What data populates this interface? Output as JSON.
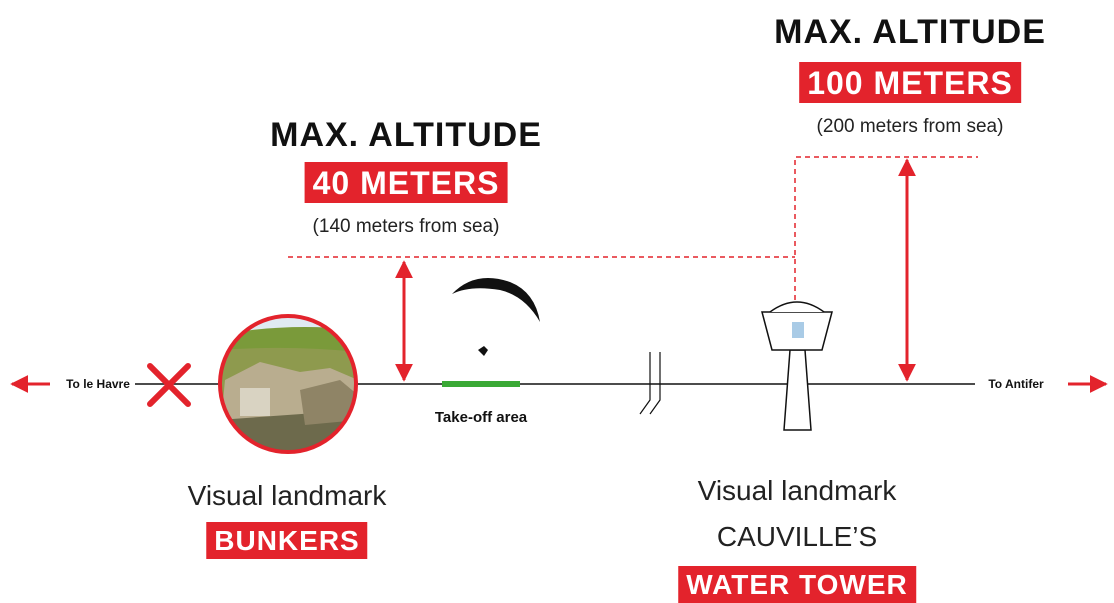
{
  "altitude_limits": [
    {
      "title": "MAX. ALTITUDE",
      "limit": "40 METERS",
      "note": "(140 meters from sea)"
    },
    {
      "title": "MAX. ALTITUDE",
      "limit": "100 METERS",
      "note": "(200 meters from sea)"
    }
  ],
  "directions": {
    "left": "To le Havre",
    "right": "To Antifer"
  },
  "takeoff": "Take-off area",
  "landmarks": [
    {
      "caption": "Visual landmark",
      "name": "BUNKERS"
    },
    {
      "caption": "Visual landmark",
      "subtitle": "CAUVILLE’S",
      "name": "WATER TOWER"
    }
  ]
}
